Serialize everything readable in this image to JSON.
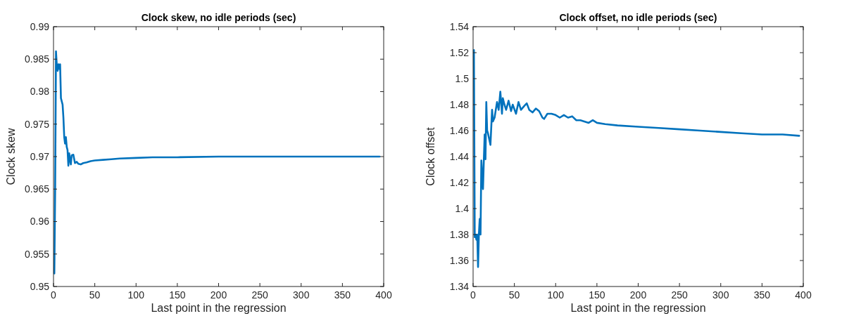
{
  "chart_data": [
    {
      "type": "line",
      "title": "Clock skew, no idle periods (sec)",
      "xlabel": "Last point in the regression",
      "ylabel": "Clock skew",
      "xlim": [
        0,
        400
      ],
      "xticks": [
        0,
        50,
        100,
        150,
        200,
        250,
        300,
        350,
        400
      ],
      "ylim": [
        0.95,
        0.99
      ],
      "yticks": [
        0.95,
        0.955,
        0.96,
        0.965,
        0.97,
        0.975,
        0.98,
        0.985,
        0.99
      ],
      "grid": false,
      "line_style": "solid",
      "marker": "none",
      "series": [
        {
          "color": "#0072bd",
          "x": [
            1,
            2,
            3,
            4,
            5,
            6,
            7,
            8,
            9,
            10,
            11,
            12,
            13,
            14,
            15,
            16,
            17,
            18,
            19,
            20,
            21,
            22,
            24,
            26,
            28,
            30,
            33,
            36,
            40,
            45,
            50,
            60,
            70,
            80,
            100,
            120,
            150,
            200,
            250,
            300,
            350,
            395
          ],
          "values": [
            0.952,
            0.965,
            0.9862,
            0.984,
            0.9832,
            0.9842,
            0.9835,
            0.9842,
            0.979,
            0.9785,
            0.978,
            0.976,
            0.973,
            0.972,
            0.973,
            0.9715,
            0.971,
            0.9686,
            0.9705,
            0.9695,
            0.9688,
            0.9702,
            0.9703,
            0.969,
            0.9692,
            0.9689,
            0.9688,
            0.969,
            0.9691,
            0.9693,
            0.9694,
            0.9695,
            0.9696,
            0.9697,
            0.9698,
            0.9699,
            0.9699,
            0.97,
            0.97,
            0.97,
            0.97,
            0.97
          ]
        }
      ]
    },
    {
      "type": "line",
      "title": "Clock offset, no idle periods (sec)",
      "xlabel": "Last point in the regression",
      "ylabel": "Clock offset",
      "xlim": [
        0,
        400
      ],
      "xticks": [
        0,
        50,
        100,
        150,
        200,
        250,
        300,
        350,
        400
      ],
      "ylim": [
        1.34,
        1.54
      ],
      "yticks": [
        1.34,
        1.36,
        1.38,
        1.4,
        1.42,
        1.44,
        1.46,
        1.48,
        1.5,
        1.52,
        1.54
      ],
      "grid": false,
      "line_style": "solid",
      "marker": "none",
      "series": [
        {
          "color": "#0072bd",
          "x": [
            1,
            2,
            3,
            4,
            5,
            6,
            7,
            8,
            9,
            10,
            11,
            12,
            13,
            14,
            15,
            16,
            17,
            18,
            19,
            21,
            23,
            24,
            26,
            27,
            29,
            31,
            33,
            35,
            36,
            38,
            40,
            43,
            46,
            48,
            52,
            55,
            58,
            62,
            65,
            68,
            72,
            76,
            80,
            84,
            86,
            90,
            95,
            100,
            105,
            110,
            115,
            120,
            125,
            130,
            140,
            145,
            150,
            160,
            175,
            200,
            225,
            250,
            275,
            300,
            325,
            350,
            375,
            395
          ],
          "values": [
            1.522,
            1.378,
            1.38,
            1.376,
            1.38,
            1.355,
            1.38,
            1.392,
            1.38,
            1.437,
            1.425,
            1.415,
            1.437,
            1.457,
            1.438,
            1.482,
            1.46,
            1.458,
            1.455,
            1.449,
            1.476,
            1.467,
            1.47,
            1.474,
            1.482,
            1.476,
            1.49,
            1.473,
            1.485,
            1.48,
            1.476,
            1.483,
            1.475,
            1.48,
            1.473,
            1.482,
            1.476,
            1.479,
            1.481,
            1.476,
            1.474,
            1.477,
            1.475,
            1.47,
            1.469,
            1.473,
            1.473,
            1.472,
            1.47,
            1.472,
            1.47,
            1.471,
            1.468,
            1.468,
            1.466,
            1.468,
            1.466,
            1.465,
            1.464,
            1.463,
            1.462,
            1.461,
            1.46,
            1.459,
            1.458,
            1.457,
            1.457,
            1.456
          ]
        }
      ]
    }
  ]
}
